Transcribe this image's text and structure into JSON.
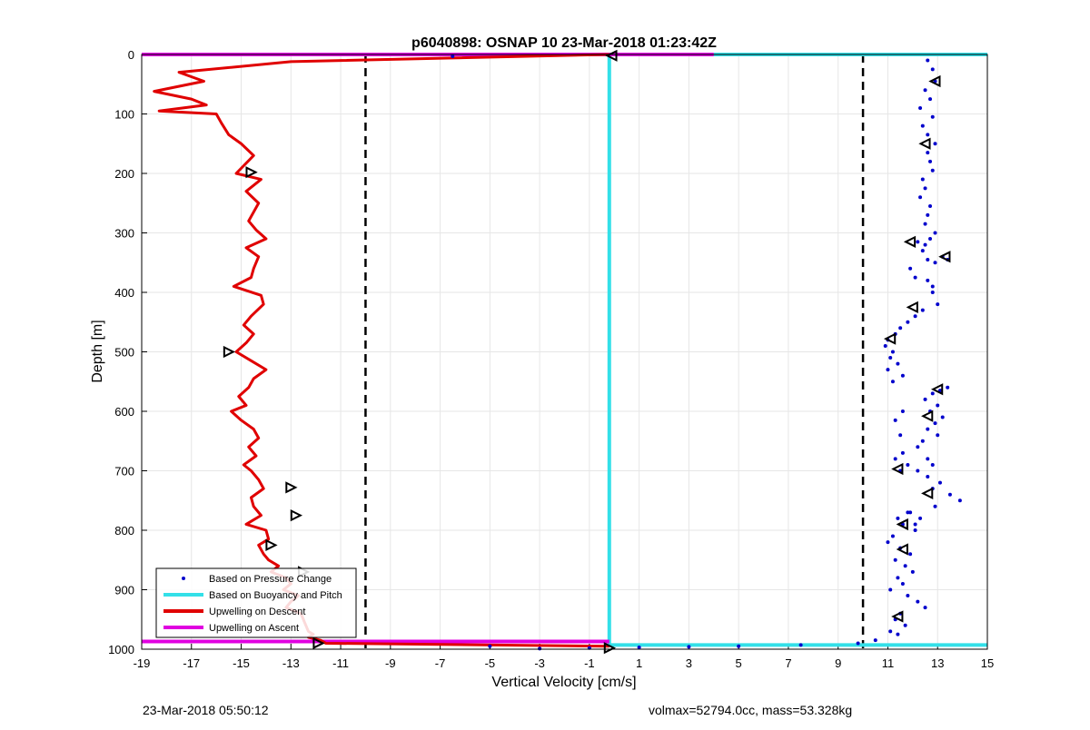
{
  "footer": {
    "timestamp": "23-Mar-2018 05:50:12",
    "vol_mass": "volmax=52794.0cc, mass=53.328kg"
  },
  "colors": {
    "pressure_dots": "#0000cc",
    "buoyancy_line": "#33e0e8",
    "descent_line": "#e00000",
    "ascent_line": "#e000e0",
    "dashed_lines": "#000000",
    "grid": "#e6e6e6"
  },
  "chart_data": {
    "type": "line",
    "title": "p6040898: OSNAP 10 23-Mar-2018 01:23:42Z",
    "xlabel": "Vertical Velocity [cm/s]",
    "ylabel": "Depth [m]",
    "xlim": [
      -19,
      15
    ],
    "ylim": [
      0,
      1000
    ],
    "y_reversed": true,
    "grid": true,
    "xticks": [
      "-19",
      "-17",
      "-15",
      "-13",
      "-11",
      "-9",
      "-7",
      "-5",
      "-3",
      "-1",
      "1",
      "3",
      "5",
      "7",
      "9",
      "11",
      "13",
      "15"
    ],
    "yticks": [
      "0",
      "100",
      "200",
      "300",
      "400",
      "500",
      "600",
      "700",
      "800",
      "900",
      "1000"
    ],
    "legend_position": "bottom-left",
    "legend": [
      "Based on Pressure Change",
      "Based on Buoyancy and Pitch",
      "Upwelling on Descent",
      "Upwelling on Ascent"
    ],
    "vertical_reference_lines_x": [
      -10,
      10
    ],
    "series": [
      {
        "name": "Based on Buoyancy and Pitch",
        "x": [
          -0.2,
          -0.2,
          15
        ],
        "y": [
          0,
          993,
          993
        ],
        "top_x": [
          4,
          15
        ],
        "top_y": [
          0,
          0
        ]
      },
      {
        "name": "Upwelling on Ascent",
        "x": [
          -19,
          4
        ],
        "y": [
          0,
          0
        ],
        "bottom_x": [
          -19,
          -0.2
        ],
        "bottom_y": [
          987,
          987
        ]
      },
      {
        "name": "Upwelling on Descent",
        "x": [
          -0.2,
          -13,
          -17.5,
          -16.5,
          -18.5,
          -17,
          -16.4,
          -18.3,
          -16,
          -15.8,
          -15.5,
          -15.0,
          -14.5,
          -15.2,
          -14.2,
          -14.8,
          -14.3,
          -14.5,
          -14.7,
          -14.4,
          -14.0,
          -14.8,
          -14.3,
          -14.5,
          -14.6,
          -15.3,
          -14.2,
          -14.1,
          -14.6,
          -14.9,
          -14.5,
          -14.8,
          -15.2,
          -14.6,
          -14.0,
          -14.5,
          -14.7,
          -15.1,
          -14.8,
          -15.4,
          -15.0,
          -14.5,
          -14.3,
          -14.7,
          -14.4,
          -14.9,
          -14.6,
          -14.3,
          -14.1,
          -14.6,
          -14.5,
          -14.2,
          -14.8,
          -14.0,
          -13.9,
          -14.3,
          -14.1,
          -13.9,
          -13.5,
          -13.8,
          -13.2,
          -13.0,
          -13.3,
          -12.7,
          -13.0,
          -13.2,
          -12.6,
          -12.5,
          -12.4,
          -12.3,
          -12.1,
          -12.3,
          -11.8,
          -11.6,
          -0.2
        ],
        "y": [
          0,
          12,
          30,
          45,
          62,
          75,
          85,
          95,
          100,
          115,
          135,
          150,
          170,
          200,
          210,
          230,
          250,
          265,
          280,
          295,
          310,
          325,
          340,
          360,
          375,
          390,
          405,
          420,
          440,
          455,
          470,
          485,
          500,
          515,
          530,
          545,
          560,
          575,
          590,
          600,
          615,
          630,
          645,
          660,
          675,
          690,
          700,
          715,
          730,
          745,
          760,
          775,
          790,
          800,
          815,
          825,
          840,
          850,
          860,
          870,
          880,
          890,
          900,
          910,
          920,
          930,
          940,
          950,
          960,
          970,
          975,
          980,
          985,
          990,
          995
        ]
      },
      {
        "name": "Based on Pressure Change",
        "x": [
          12.6,
          12.8,
          12.9,
          12.5,
          12.7,
          12.3,
          12.8,
          12.4,
          12.6,
          12.9,
          12.6,
          12.7,
          12.8,
          12.4,
          12.5,
          12.3,
          12.7,
          12.6,
          12.5,
          12.9,
          12.7,
          12.5,
          12.2,
          12.4,
          12.6,
          11.9,
          12.1,
          12.8,
          13.2,
          13.4,
          12.9,
          12.6,
          12.8,
          13.0,
          12.4,
          12.1,
          11.8,
          11.5,
          11.3,
          11.0,
          10.9,
          11.2,
          11.1,
          11.4,
          11.0,
          11.6,
          11.2,
          13.1,
          13.4,
          12.8,
          12.5,
          13.0,
          12.7,
          13.2,
          12.9,
          12.6,
          13.0,
          12.4,
          12.2,
          11.6,
          11.3,
          11.8,
          11.5,
          12.6,
          13.1,
          12.8,
          13.5,
          13.9,
          12.9,
          11.8,
          11.4,
          11.6,
          12.1,
          11.2,
          11.0,
          11.5,
          11.9,
          11.3,
          11.7,
          12.0,
          11.4,
          11.6,
          11.1,
          11.8,
          12.2,
          12.5,
          11.5,
          11.3,
          11.7,
          11.1,
          11.4,
          12.6,
          12.8,
          12.2,
          11.9,
          12.3,
          12.1,
          11.6,
          11.3,
          11.5,
          10.5,
          9.8,
          7.5,
          5.0,
          3.0,
          1.0,
          -1.0,
          -3.0,
          -5.0,
          -6.5
        ],
        "y": [
          10,
          25,
          45,
          60,
          75,
          90,
          105,
          120,
          135,
          150,
          165,
          180,
          195,
          210,
          225,
          240,
          255,
          270,
          285,
          300,
          310,
          320,
          315,
          330,
          345,
          360,
          375,
          390,
          340,
          345,
          350,
          380,
          400,
          420,
          430,
          440,
          450,
          460,
          470,
          480,
          490,
          500,
          510,
          520,
          530,
          540,
          550,
          565,
          560,
          570,
          580,
          590,
          600,
          610,
          620,
          630,
          640,
          650,
          660,
          670,
          680,
          690,
          700,
          710,
          720,
          730,
          740,
          750,
          760,
          770,
          780,
          790,
          800,
          810,
          820,
          830,
          840,
          850,
          860,
          870,
          880,
          890,
          900,
          910,
          920,
          930,
          940,
          950,
          960,
          970,
          975,
          680,
          690,
          700,
          770,
          780,
          790,
          600,
          615,
          640,
          985,
          990,
          993,
          995,
          996,
          997,
          998,
          999,
          995,
          3
        ]
      }
    ],
    "markers": {
      "descent": {
        "x": [
          -14.6,
          -15.5,
          -13.0,
          -12.8,
          -13.8,
          -12.5,
          -11.9,
          -0.2
        ],
        "y": [
          198,
          500,
          728,
          775,
          825,
          870,
          990,
          998
        ]
      },
      "ascent": {
        "x": [
          12.9,
          12.5,
          11.9,
          13.3,
          12.0,
          11.1,
          13.0,
          12.6,
          11.4,
          12.6,
          11.6,
          11.6,
          11.4,
          -0.1
        ],
        "y": [
          45,
          150,
          315,
          340,
          425,
          478,
          563,
          608,
          697,
          738,
          790,
          832,
          945,
          2
        ]
      }
    }
  }
}
